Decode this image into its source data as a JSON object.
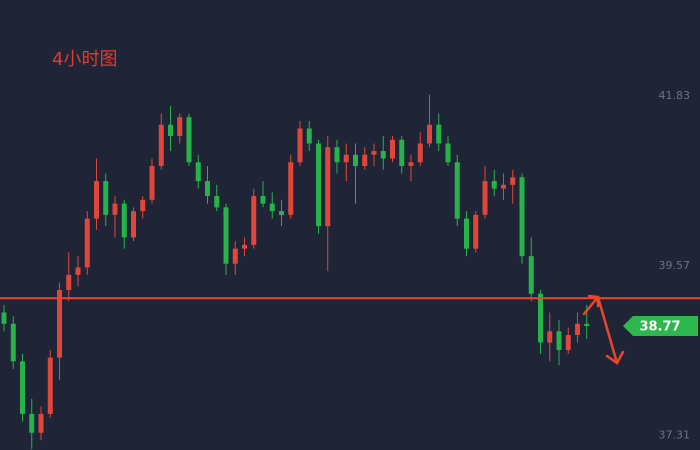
{
  "chart_data": {
    "type": "candlestick",
    "title": "4小时图",
    "open": [
      38.95,
      38.8,
      38.3,
      37.6,
      37.35,
      37.6,
      38.35,
      39.25,
      39.45,
      39.55,
      40.2,
      40.7,
      40.25,
      40.4,
      39.95,
      40.3,
      40.45,
      40.9,
      41.45,
      41.3,
      41.55,
      40.95,
      40.7,
      40.5,
      40.35,
      39.6,
      39.8,
      39.85,
      40.5,
      40.4,
      40.3,
      40.25,
      40.95,
      41.4,
      41.2,
      40.1,
      41.15,
      40.95,
      41.05,
      40.9,
      41.05,
      41.1,
      41.0,
      41.25,
      40.9,
      40.95,
      41.2,
      41.45,
      41.2,
      40.95,
      40.2,
      39.8,
      40.25,
      40.7,
      40.6,
      40.65,
      40.75,
      39.7,
      39.2,
      38.55,
      38.7,
      38.45,
      38.65,
      38.8
    ],
    "high": [
      39.05,
      38.9,
      38.4,
      37.8,
      37.7,
      38.45,
      39.35,
      39.75,
      39.7,
      40.3,
      41.0,
      40.8,
      40.5,
      40.45,
      40.35,
      40.5,
      41.0,
      41.6,
      41.7,
      41.6,
      41.6,
      41.05,
      40.9,
      40.65,
      40.4,
      39.9,
      39.95,
      40.6,
      40.7,
      40.55,
      40.45,
      41.05,
      41.5,
      41.5,
      41.25,
      41.3,
      41.25,
      41.2,
      41.2,
      41.15,
      41.2,
      41.3,
      41.3,
      41.3,
      41.05,
      41.35,
      41.85,
      41.6,
      41.3,
      41.05,
      40.3,
      40.3,
      40.9,
      40.85,
      40.8,
      40.85,
      40.8,
      39.95,
      39.25,
      38.95,
      38.85,
      38.75,
      38.95,
      39.05
    ],
    "low": [
      38.7,
      38.2,
      37.5,
      37.13,
      37.25,
      37.55,
      38.05,
      39.1,
      39.3,
      39.45,
      40.05,
      40.1,
      39.95,
      39.8,
      39.9,
      40.2,
      40.4,
      40.85,
      41.1,
      41.2,
      40.9,
      40.6,
      40.4,
      40.3,
      39.45,
      39.45,
      39.7,
      39.8,
      40.35,
      40.2,
      40.1,
      40.2,
      40.9,
      41.1,
      40.0,
      39.5,
      40.8,
      40.7,
      40.4,
      40.85,
      40.9,
      40.85,
      40.95,
      40.8,
      40.7,
      40.9,
      41.15,
      41.1,
      40.9,
      40.1,
      39.7,
      39.75,
      40.2,
      40.5,
      40.45,
      40.4,
      39.6,
      39.1,
      38.4,
      38.3,
      38.25,
      38.4,
      38.55,
      38.6
    ],
    "close": [
      38.8,
      38.3,
      37.6,
      37.35,
      37.6,
      38.35,
      39.25,
      39.45,
      39.55,
      40.2,
      40.7,
      40.25,
      40.4,
      39.95,
      40.3,
      40.45,
      40.9,
      41.45,
      41.3,
      41.55,
      40.95,
      40.7,
      40.5,
      40.35,
      39.6,
      39.8,
      39.85,
      40.5,
      40.4,
      40.3,
      40.25,
      40.95,
      41.4,
      41.2,
      40.1,
      41.15,
      40.95,
      41.05,
      40.9,
      41.05,
      41.1,
      41.0,
      41.25,
      40.9,
      40.95,
      41.2,
      41.45,
      41.2,
      40.95,
      40.2,
      39.8,
      40.25,
      40.7,
      40.6,
      40.65,
      40.75,
      39.7,
      39.2,
      38.55,
      38.7,
      38.45,
      38.65,
      38.8,
      38.77
    ],
    "up_color": "#e0463a",
    "down_color": "#26b34a",
    "ylim": [
      37.12,
      43.11
    ],
    "yticks": [
      41.83,
      39.57,
      37.31
    ],
    "level_line": {
      "value": 39.14,
      "color": "#e8472e"
    },
    "last_price": 38.77,
    "last_price_color": "#2db84d",
    "grid": false
  }
}
